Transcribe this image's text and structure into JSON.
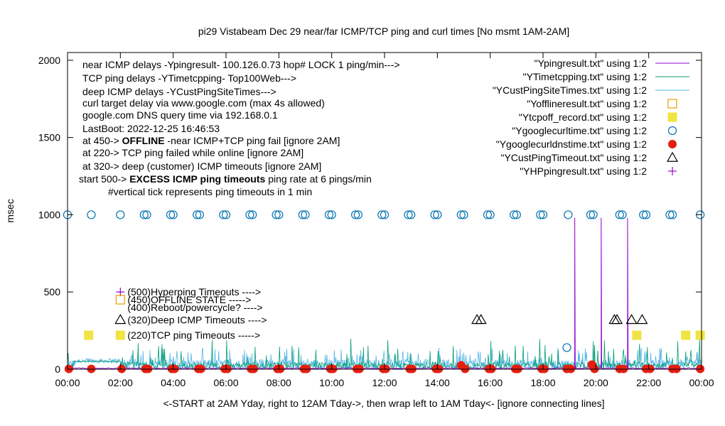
{
  "chart_data": {
    "type": "scatter",
    "title": "pi29 Vistabeam Dec 29  near/far ICMP/TCP ping and curl times [No msmt 1AM-2AM]",
    "xlabel": "<-START at 2AM Yday, right to 12AM Tday->, then wrap left to 1AM Tday<- [ignore connecting lines]",
    "ylabel": "msec",
    "xlim": [
      0,
      24
    ],
    "ylim": [
      0,
      2050
    ],
    "xticks": [
      "00:00",
      "02:00",
      "04:00",
      "06:00",
      "08:00",
      "10:00",
      "12:00",
      "14:00",
      "16:00",
      "18:00",
      "20:00",
      "22:00",
      "00:00"
    ],
    "yticks": [
      0,
      500,
      1000,
      1500,
      2000
    ],
    "info_lines": [
      "near ICMP delays -Ypingresult- 100.126.0.73 hop# LOCK 1 ping/min--->",
      "TCP ping delays -YTimetcpping- Top100Web--->",
      "deep ICMP delays -YCustPingSiteTimes--->",
      "curl target delay via www.google.com (max 4s allowed)",
      "google.com DNS query time via 192.168.0.1",
      "LastBoot: 2022-12-25 16:46:53"
    ],
    "info_offline": {
      "prefix": "at 450-> ",
      "bold": "OFFLINE",
      "suffix": " -near ICMP+TCP ping fail [ignore 2AM]"
    },
    "info_tcp_fail": "at 220-> TCP ping failed while online [ignore 2AM]",
    "info_deep": "at 320-> deep (customer) ICMP timeouts [ignore 2AM]",
    "info_excess": {
      "prefix": "start 500-> ",
      "bold": "EXCESS ICMP ping timeouts",
      "suffix": "  ping rate at 6 pings/min"
    },
    "info_tick": "#vertical tick represents ping timeouts in 1 min",
    "legend_position": "top-right",
    "legend": [
      {
        "label": "\"Ypingresult.txt\" using 1:2",
        "color": "#9400d3",
        "marker": "line"
      },
      {
        "label": "\"YTimetcpping.txt\" using 1:2",
        "color": "#009e73",
        "marker": "line"
      },
      {
        "label": "\"YCustPingSiteTimes.txt\" using 1:2",
        "color": "#56b4e9",
        "marker": "line"
      },
      {
        "label": "\"Yofflineresult.txt\" using 1:2",
        "color": "#e69f00",
        "marker": "open-square"
      },
      {
        "label": "\"Ytcpoff_record.txt\" using 1:2",
        "color": "#f0e442",
        "marker": "filled-square"
      },
      {
        "label": "\"Ygooglecurltime.txt\" using 1:2",
        "color": "#0072b2",
        "marker": "open-circle"
      },
      {
        "label": "\"Ygooglecurldnstime.txt\" using 1:2",
        "color": "#e51e10",
        "marker": "filled-circle"
      },
      {
        "label": "\"YCustPingTimeout.txt\" using 1:2",
        "color": "#000000",
        "marker": "open-triangle"
      },
      {
        "label": "\"YHPpingresult.txt\" using 1:2",
        "color": "#9400d3",
        "marker": "plus"
      }
    ],
    "key_labels": [
      {
        "text": "(500)Hyperping Timeouts ---->",
        "y": 500
      },
      {
        "text": "(450)OFFLINE STATE ----->",
        "y": 450
      },
      {
        "text": "(400)Reboot/powercycle? ---->",
        "y": 400
      },
      {
        "text": "(320)Deep ICMP Timeouts ---->",
        "y": 320
      },
      {
        "text": "(220)TCP ping Timeouts ----->",
        "y": 220
      }
    ],
    "key_markers": [
      {
        "series": "YHPpingresult.txt",
        "x": 2.0,
        "y": 500
      },
      {
        "series": "Yofflineresult.txt",
        "x": 2.0,
        "y": 450
      },
      {
        "series": "YCustPingTimeout.txt",
        "x": 2.0,
        "y": 320
      },
      {
        "series": "Ytcpoff_record.txt",
        "x": 2.0,
        "y": 220
      }
    ],
    "curl_times": {
      "x": [
        0.0,
        0.9,
        2.0,
        2.9,
        3.0,
        3.9,
        4.0,
        4.9,
        5.0,
        5.9,
        6.0,
        6.9,
        7.0,
        7.9,
        8.0,
        8.9,
        9.0,
        9.9,
        10.0,
        10.9,
        11.0,
        11.9,
        12.0,
        12.9,
        13.0,
        13.9,
        14.0,
        14.9,
        15.0,
        15.9,
        16.0,
        16.9,
        17.0,
        17.9,
        18.0,
        18.95,
        19.8,
        19.9,
        20.9,
        21.0,
        21.8,
        21.9,
        22.8,
        22.9,
        23.95
      ],
      "y": [
        1000,
        1000,
        1000,
        1000,
        1000,
        1000,
        1000,
        1000,
        1000,
        1000,
        1000,
        1000,
        1000,
        1000,
        1000,
        1000,
        1000,
        1000,
        1000,
        1000,
        1000,
        1000,
        1000,
        1000,
        1000,
        1000,
        1000,
        1000,
        1000,
        1000,
        1000,
        1000,
        1000,
        1000,
        1000,
        1000,
        1000,
        1000,
        1000,
        1000,
        1000,
        1000,
        1000,
        1000,
        1000
      ],
      "extra_x": [
        18.9
      ],
      "extra_y": [
        140
      ]
    },
    "dns_time_x": [
      0.05,
      0.9,
      2.05,
      2.95,
      3.05,
      3.95,
      4.05,
      4.95,
      5.05,
      5.95,
      6.05,
      6.95,
      7.05,
      7.95,
      8.05,
      8.95,
      9.05,
      9.95,
      10.05,
      10.95,
      11.05,
      11.95,
      12.05,
      12.95,
      13.05,
      13.95,
      14.05,
      14.9,
      15.05,
      15.95,
      16.05,
      16.95,
      17.05,
      17.95,
      18.05,
      18.9,
      19.05,
      19.85,
      19.95,
      20.9,
      21.05,
      21.9,
      22.05,
      22.9,
      23.05,
      23.95
    ],
    "dns_time_y": [
      2,
      2,
      2,
      2,
      2,
      2,
      2,
      2,
      2,
      2,
      2,
      2,
      2,
      2,
      2,
      2,
      2,
      2,
      2,
      2,
      2,
      2,
      2,
      2,
      2,
      2,
      2,
      25,
      2,
      2,
      2,
      2,
      2,
      2,
      2,
      2,
      2,
      30,
      2,
      2,
      2,
      2,
      2,
      2,
      2,
      2
    ],
    "cust_ping_timeouts": {
      "x": [
        15.5,
        15.65,
        20.7,
        20.8,
        21.35,
        21.75
      ],
      "y": [
        320,
        320,
        320,
        320,
        320,
        320
      ]
    },
    "tcp_timeouts": {
      "x": [
        0.8,
        21.55,
        23.4,
        23.95
      ],
      "y": [
        220,
        220,
        220,
        220
      ]
    },
    "near_icmp_spikes": {
      "x": [
        19.2,
        20.2,
        21.2
      ],
      "y": [
        980,
        980,
        980
      ]
    },
    "tcp_ping_typical_range": [
      0,
      200
    ],
    "deep_icmp_typical_range": [
      0,
      140
    ]
  }
}
